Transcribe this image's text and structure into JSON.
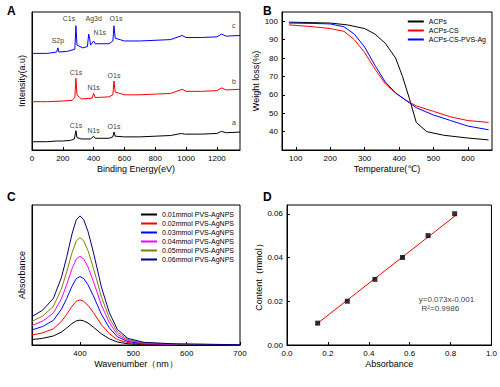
{
  "chart_data": [
    {
      "type": "line",
      "title": "A",
      "xlabel": "Binding Energy(eV)",
      "ylabel": "Intensity(a.u)",
      "xlim": [
        0,
        1350
      ],
      "xticks": [
        0,
        200,
        400,
        600,
        800,
        1000,
        1200
      ],
      "ylim": [
        0,
        100
      ],
      "tick_labels": "x",
      "grid": false,
      "series": [
        {
          "color": "#000000",
          "x": [
            0,
            100,
            160,
            200,
            250,
            275,
            285,
            292,
            320,
            380,
            400,
            410,
            500,
            525,
            532,
            540,
            600,
            700,
            800,
            900,
            970,
            990,
            1100,
            1200,
            1230,
            1260,
            1350
          ],
          "values": [
            6,
            6,
            6.5,
            6.5,
            7,
            8,
            14,
            9,
            8,
            8,
            10,
            8.5,
            8.5,
            9.5,
            13,
            10,
            9.5,
            9.5,
            10,
            10.5,
            12,
            11.5,
            11.5,
            12,
            13.5,
            12.5,
            13
          ]
        },
        {
          "color": "#ff0000",
          "x": [
            0,
            100,
            200,
            260,
            278,
            285,
            292,
            320,
            390,
            400,
            410,
            500,
            525,
            532,
            540,
            600,
            700,
            800,
            900,
            975,
            1000,
            1100,
            1200,
            1230,
            1260,
            1350
          ],
          "values": [
            35,
            35,
            35.5,
            36,
            38,
            52,
            40,
            37,
            37.5,
            41,
            38,
            38.5,
            40,
            50,
            42,
            40,
            40,
            40.5,
            41,
            44,
            42.5,
            42.5,
            43,
            45,
            43.5,
            44
          ]
        },
        {
          "color": "#0000ff",
          "x": [
            0,
            100,
            160,
            168,
            175,
            230,
            278,
            285,
            292,
            330,
            360,
            368,
            374,
            380,
            400,
            410,
            500,
            525,
            532,
            540,
            600,
            700,
            800,
            900,
            975,
            1000,
            1100,
            1200,
            1230,
            1260,
            1350
          ],
          "values": [
            70,
            70,
            71,
            74,
            71,
            71.5,
            73,
            90,
            76,
            74,
            75,
            84,
            81,
            76,
            79,
            77,
            77,
            79,
            90,
            81,
            79,
            79,
            79.5,
            80,
            83,
            81.5,
            81.5,
            82,
            84,
            82.5,
            83
          ]
        }
      ],
      "annotations": [
        {
          "text": "C1s",
          "x": 285,
          "y": 18
        },
        {
          "text": "N1s",
          "x": 400,
          "y": 14
        },
        {
          "text": "O1s",
          "x": 532,
          "y": 17
        },
        {
          "text": "C1s",
          "x": 285,
          "y": 56
        },
        {
          "text": "N1s",
          "x": 400,
          "y": 45
        },
        {
          "text": "O1s",
          "x": 532,
          "y": 54
        },
        {
          "text": "S2p",
          "x": 168,
          "y": 79
        },
        {
          "text": "C1s",
          "x": 240,
          "y": 95
        },
        {
          "text": "Ag3d",
          "x": 400,
          "y": 95
        },
        {
          "text": "N1s",
          "x": 440,
          "y": 85
        },
        {
          "text": "O1s",
          "x": 545,
          "y": 95
        },
        {
          "text": "a",
          "x": 1310,
          "y": 20
        },
        {
          "text": "b",
          "x": 1310,
          "y": 50
        },
        {
          "text": "c",
          "x": 1310,
          "y": 90
        }
      ]
    },
    {
      "type": "line",
      "title": "B",
      "xlabel": "Temperature(℃)",
      "ylabel": "Weight loss(%)",
      "xlim": [
        60,
        670
      ],
      "xticks": [
        100,
        200,
        300,
        400,
        500,
        600
      ],
      "ylim": [
        30,
        105
      ],
      "yticks": [
        40,
        50,
        60,
        70,
        80,
        90,
        100
      ],
      "grid": false,
      "legend": "upper right",
      "series": [
        {
          "name": "ACPs",
          "color": "#000000",
          "x": [
            80,
            150,
            200,
            250,
            300,
            330,
            360,
            390,
            410,
            430,
            450,
            480,
            530,
            600,
            660
          ],
          "values": [
            99.5,
            99.2,
            99,
            98,
            96,
            93,
            88,
            80,
            70,
            58,
            45,
            40,
            38,
            36.5,
            35.5
          ]
        },
        {
          "name": "ACPs-CS",
          "color": "#ff0000",
          "x": [
            80,
            150,
            200,
            240,
            270,
            300,
            330,
            360,
            390,
            420,
            450,
            500,
            550,
            600,
            660
          ],
          "values": [
            98,
            97,
            96,
            94.5,
            90,
            83,
            74,
            66,
            61,
            57,
            54,
            51,
            48,
            46,
            45
          ]
        },
        {
          "name": "ACPs-CS-PVS-Ag",
          "color": "#0000ff",
          "x": [
            80,
            150,
            200,
            240,
            270,
            300,
            330,
            360,
            390,
            420,
            450,
            500,
            550,
            600,
            660
          ],
          "values": [
            99,
            98.8,
            98.5,
            97,
            93,
            86,
            76,
            67,
            61,
            57,
            53,
            49,
            46,
            43,
            41
          ]
        }
      ]
    },
    {
      "type": "line",
      "title": "C",
      "xlabel": "Wavenumber（nm）",
      "ylabel": "Absorbance",
      "xlim": [
        310,
        700
      ],
      "xticks": [
        400,
        500,
        600,
        700
      ],
      "ylim": [
        0,
        0.9
      ],
      "tick_labels": "x",
      "grid": false,
      "legend": "upper right",
      "x": [
        310,
        330,
        350,
        365,
        375,
        385,
        393,
        400,
        407,
        415,
        425,
        440,
        455,
        470,
        490,
        520,
        580,
        700
      ],
      "series": [
        {
          "name": "0.01mmol PVS-AgNPS",
          "color": "#000000",
          "values": [
            0.035,
            0.043,
            0.058,
            0.083,
            0.109,
            0.138,
            0.155,
            0.16,
            0.155,
            0.141,
            0.115,
            0.072,
            0.04,
            0.019,
            0.008,
            0.003,
            0.001,
            0
          ]
        },
        {
          "name": "0.02mmol PVS-AgNPS",
          "color": "#ff0000",
          "values": [
            0.064,
            0.078,
            0.104,
            0.151,
            0.197,
            0.249,
            0.281,
            0.29,
            0.281,
            0.255,
            0.209,
            0.131,
            0.073,
            0.035,
            0.015,
            0.006,
            0.002,
            0.001
          ]
        },
        {
          "name": "0.03mmol PVS-AgNPS",
          "color": "#0000ff",
          "values": [
            0.097,
            0.119,
            0.158,
            0.229,
            0.299,
            0.378,
            0.427,
            0.44,
            0.427,
            0.387,
            0.317,
            0.198,
            0.11,
            0.053,
            0.022,
            0.009,
            0.004,
            0.001
          ]
        },
        {
          "name": "0.04mmol PVS-AgNPS",
          "color": "#ff00ff",
          "values": [
            0.125,
            0.154,
            0.205,
            0.296,
            0.388,
            0.49,
            0.553,
            0.57,
            0.553,
            0.502,
            0.41,
            0.257,
            0.143,
            0.068,
            0.029,
            0.011,
            0.005,
            0.002
          ]
        },
        {
          "name": "0.05mmol PVS-AgNPS",
          "color": "#808000",
          "values": [
            0.152,
            0.186,
            0.248,
            0.359,
            0.469,
            0.593,
            0.669,
            0.69,
            0.669,
            0.607,
            0.497,
            0.311,
            0.173,
            0.083,
            0.035,
            0.014,
            0.006,
            0.002
          ]
        },
        {
          "name": "0.06mmol PVS-AgNPS",
          "color": "#000080",
          "values": [
            0.183,
            0.224,
            0.299,
            0.432,
            0.564,
            0.714,
            0.805,
            0.83,
            0.805,
            0.73,
            0.598,
            0.374,
            0.208,
            0.1,
            0.042,
            0.017,
            0.007,
            0.002
          ]
        }
      ]
    },
    {
      "type": "scatter",
      "title": "D",
      "xlabel": "Absorbance",
      "ylabel": "Content（mmol）",
      "xlim": [
        0,
        1.0
      ],
      "xticks": [
        {
          "value": 0,
          "label": "0.0"
        },
        0.2,
        0.4,
        0.6,
        0.8,
        {
          "value": 1,
          "label": "1.0"
        }
      ],
      "ylim": [
        0,
        0.064
      ],
      "yticks": [
        {
          "value": 0,
          "label": "0.00"
        },
        0.02,
        0.04,
        0.06
      ],
      "grid": false,
      "series": [
        {
          "type": "scatter",
          "color": "#000000",
          "marker": "square",
          "x": [
            0.15,
            0.295,
            0.43,
            0.565,
            0.69,
            0.82
          ],
          "values": [
            0.01,
            0.02,
            0.03,
            0.04,
            0.05,
            0.06
          ]
        },
        {
          "type": "line",
          "color": "#ff0000",
          "x": [
            0.14,
            0.83
          ],
          "values": [
            0.0092,
            0.0596
          ]
        }
      ],
      "annotations": [
        {
          "text": "y=0.073x-0.001",
          "x": 0.78,
          "y": 0.021
        },
        {
          "text": "R²=0.9986",
          "x": 0.75,
          "y": 0.0165
        }
      ]
    }
  ]
}
